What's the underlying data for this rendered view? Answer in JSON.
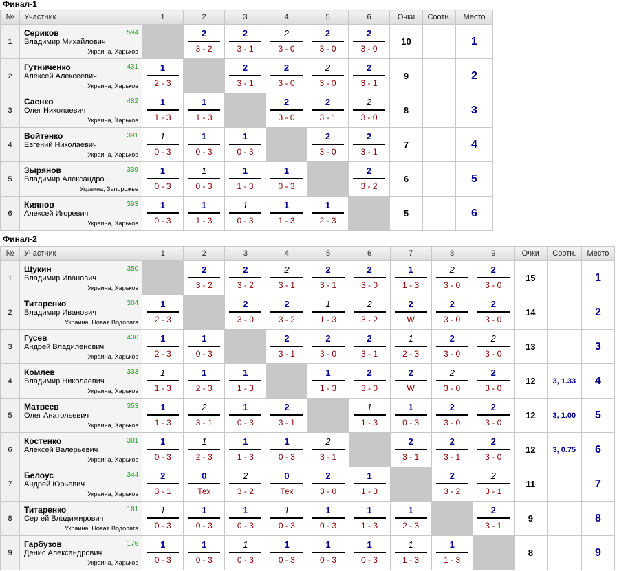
{
  "tables": [
    {
      "title": "Финал-1",
      "headers": {
        "num": "№",
        "participant": "Участник",
        "points": "Очки",
        "ratio": "Соотн.",
        "place": "Место"
      },
      "columns": [
        "1",
        "2",
        "3",
        "4",
        "5",
        "6"
      ],
      "players": [
        {
          "num": "1",
          "name": "Сериков",
          "first": "Владимир Михайлович",
          "rating": "594",
          "city": "Украина, Харьков",
          "points": "10",
          "ratio": "",
          "place": "1",
          "cells": [
            null,
            [
              "2",
              "3 - 2",
              0
            ],
            [
              "2",
              "3 - 1",
              0
            ],
            [
              "2",
              "3 - 0",
              1
            ],
            [
              "2",
              "3 - 0",
              0
            ],
            [
              "2",
              "3 - 0",
              0
            ]
          ]
        },
        {
          "num": "2",
          "name": "Гутниченко",
          "first": "Алексей Алексеевич",
          "rating": "431",
          "city": "Украина, Харьков",
          "points": "9",
          "ratio": "",
          "place": "2",
          "cells": [
            [
              "1",
              "2 - 3",
              0
            ],
            null,
            [
              "2",
              "3 - 1",
              0
            ],
            [
              "2",
              "3 - 0",
              0
            ],
            [
              "2",
              "3 - 0",
              1
            ],
            [
              "2",
              "3 - 1",
              0
            ]
          ]
        },
        {
          "num": "3",
          "name": "Саенко",
          "first": "Олег Николаевич",
          "rating": "482",
          "city": "Украина, Харьков",
          "points": "8",
          "ratio": "",
          "place": "3",
          "cells": [
            [
              "1",
              "1 - 3",
              0
            ],
            [
              "1",
              "1 - 3",
              0
            ],
            null,
            [
              "2",
              "3 - 0",
              0
            ],
            [
              "2",
              "3 - 1",
              0
            ],
            [
              "2",
              "3 - 0",
              1
            ]
          ]
        },
        {
          "num": "4",
          "name": "Войтенко",
          "first": "Евгений Николаевич",
          "rating": "391",
          "city": "Украина, Харьков",
          "points": "7",
          "ratio": "",
          "place": "4",
          "cells": [
            [
              "1",
              "0 - 3",
              1
            ],
            [
              "1",
              "0 - 3",
              0
            ],
            [
              "1",
              "0 - 3",
              0
            ],
            null,
            [
              "2",
              "3 - 0",
              0
            ],
            [
              "2",
              "3 - 1",
              0
            ]
          ]
        },
        {
          "num": "5",
          "name": "Зырянов",
          "first": "Владимир Александро...",
          "rating": "339",
          "city": "Украина, Запорожье",
          "points": "6",
          "ratio": "",
          "place": "5",
          "cells": [
            [
              "1",
              "0 - 3",
              0
            ],
            [
              "1",
              "0 - 3",
              1
            ],
            [
              "1",
              "1 - 3",
              0
            ],
            [
              "1",
              "0 - 3",
              0
            ],
            null,
            [
              "2",
              "3 - 2",
              0
            ]
          ]
        },
        {
          "num": "6",
          "name": "Киянов",
          "first": "Алексей Игоревич",
          "rating": "393",
          "city": "Украина, Харьков",
          "points": "5",
          "ratio": "",
          "place": "6",
          "cells": [
            [
              "1",
              "0 - 3",
              0
            ],
            [
              "1",
              "1 - 3",
              0
            ],
            [
              "1",
              "0 - 3",
              1
            ],
            [
              "1",
              "1 - 3",
              0
            ],
            [
              "1",
              "2 - 3",
              0
            ],
            null
          ]
        }
      ]
    },
    {
      "title": "Финал-2",
      "headers": {
        "num": "№",
        "participant": "Участник",
        "points": "Очки",
        "ratio": "Соотн.",
        "place": "Место"
      },
      "columns": [
        "1",
        "2",
        "3",
        "4",
        "5",
        "6",
        "7",
        "8",
        "9"
      ],
      "players": [
        {
          "num": "1",
          "name": "Щукин",
          "first": "Владимир Иванович",
          "rating": "350",
          "city": "Украина, Харьков",
          "points": "15",
          "ratio": "",
          "place": "1",
          "cells": [
            null,
            [
              "2",
              "3 - 2",
              0
            ],
            [
              "2",
              "3 - 2",
              0
            ],
            [
              "2",
              "3 - 1",
              1
            ],
            [
              "2",
              "3 - 1",
              0
            ],
            [
              "2",
              "3 - 0",
              0
            ],
            [
              "1",
              "1 - 3",
              0
            ],
            [
              "2",
              "3 - 0",
              1
            ],
            [
              "2",
              "3 - 0",
              0
            ]
          ]
        },
        {
          "num": "2",
          "name": "Титаренко",
          "first": "Владимир Иванович",
          "rating": "304",
          "city": "Украина, Новая Водолага",
          "points": "14",
          "ratio": "",
          "place": "2",
          "cells": [
            [
              "1",
              "2 - 3",
              0
            ],
            null,
            [
              "2",
              "3 - 0",
              0
            ],
            [
              "2",
              "3 - 2",
              0
            ],
            [
              "1",
              "1 - 3",
              1
            ],
            [
              "2",
              "3 - 2",
              1
            ],
            [
              "2",
              "W",
              0
            ],
            [
              "2",
              "3 - 0",
              0
            ],
            [
              "2",
              "3 - 0",
              0
            ]
          ]
        },
        {
          "num": "3",
          "name": "Гусев",
          "first": "Андрей Владиленович",
          "rating": "430",
          "city": "Украина, Харьков",
          "points": "13",
          "ratio": "",
          "place": "3",
          "cells": [
            [
              "1",
              "2 - 3",
              0
            ],
            [
              "1",
              "0 - 3",
              0
            ],
            null,
            [
              "2",
              "3 - 1",
              0
            ],
            [
              "2",
              "3 - 0",
              0
            ],
            [
              "2",
              "3 - 1",
              0
            ],
            [
              "1",
              "2 - 3",
              1
            ],
            [
              "2",
              "3 - 0",
              0
            ],
            [
              "2",
              "3 - 0",
              1
            ]
          ]
        },
        {
          "num": "4",
          "name": "Комлев",
          "first": "Владимир Николаевич",
          "rating": "333",
          "city": "Украина, Харьков",
          "points": "12",
          "ratio": "3, 1.33",
          "place": "4",
          "cells": [
            [
              "1",
              "1 - 3",
              1
            ],
            [
              "1",
              "2 - 3",
              0
            ],
            [
              "1",
              "1 - 3",
              0
            ],
            null,
            [
              "1",
              "1 - 3",
              0
            ],
            [
              "2",
              "3 - 0",
              0
            ],
            [
              "2",
              "W",
              0
            ],
            [
              "2",
              "3 - 0",
              1
            ],
            [
              "2",
              "3 - 0",
              0
            ]
          ]
        },
        {
          "num": "5",
          "name": "Матвеев",
          "first": "Олег Анатольевич",
          "rating": "353",
          "city": "Украина, Харьков",
          "points": "12",
          "ratio": "3, 1.00",
          "place": "5",
          "cells": [
            [
              "1",
              "1 - 3",
              0
            ],
            [
              "2",
              "3 - 1",
              1
            ],
            [
              "1",
              "0 - 3",
              0
            ],
            [
              "2",
              "3 - 1",
              0
            ],
            null,
            [
              "1",
              "1 - 3",
              1
            ],
            [
              "1",
              "0 - 3",
              0
            ],
            [
              "2",
              "3 - 0",
              0
            ],
            [
              "2",
              "3 - 0",
              0
            ]
          ]
        },
        {
          "num": "6",
          "name": "Костенко",
          "first": "Алексей Валерьевич",
          "rating": "301",
          "city": "Украина, Харьков",
          "points": "12",
          "ratio": "3, 0.75",
          "place": "6",
          "cells": [
            [
              "1",
              "0 - 3",
              0
            ],
            [
              "1",
              "2 - 3",
              1
            ],
            [
              "1",
              "1 - 3",
              0
            ],
            [
              "1",
              "0 - 3",
              0
            ],
            [
              "2",
              "3 - 1",
              1
            ],
            null,
            [
              "2",
              "3 - 1",
              0
            ],
            [
              "2",
              "3 - 1",
              0
            ],
            [
              "2",
              "3 - 0",
              0
            ]
          ]
        },
        {
          "num": "7",
          "name": "Белоус",
          "first": "Андрей Юрьевич",
          "rating": "344",
          "city": "Украина, Харьков",
          "points": "11",
          "ratio": "",
          "place": "7",
          "cells": [
            [
              "2",
              "3 - 1",
              0
            ],
            [
              "0",
              "Тех",
              0
            ],
            [
              "2",
              "3 - 2",
              1
            ],
            [
              "0",
              "Тех",
              0
            ],
            [
              "2",
              "3 - 0",
              0
            ],
            [
              "1",
              "1 - 3",
              0
            ],
            null,
            [
              "2",
              "3 - 2",
              0
            ],
            [
              "2",
              "3 - 1",
              1
            ]
          ]
        },
        {
          "num": "8",
          "name": "Титаренко",
          "first": "Сергей Владимирович",
          "rating": "181",
          "city": "Украина, Новая Водолага",
          "points": "9",
          "ratio": "",
          "place": "8",
          "cells": [
            [
              "1",
              "0 - 3",
              1
            ],
            [
              "1",
              "0 - 3",
              0
            ],
            [
              "1",
              "0 - 3",
              0
            ],
            [
              "1",
              "0 - 3",
              1
            ],
            [
              "1",
              "0 - 3",
              0
            ],
            [
              "1",
              "1 - 3",
              0
            ],
            [
              "1",
              "2 - 3",
              0
            ],
            null,
            [
              "2",
              "3 - 1",
              0
            ]
          ]
        },
        {
          "num": "9",
          "name": "Гарбузов",
          "first": "Денис Александрович",
          "rating": "176",
          "city": "Украина, Харьков",
          "points": "8",
          "ratio": "",
          "place": "9",
          "cells": [
            [
              "1",
              "0 - 3",
              0
            ],
            [
              "1",
              "0 - 3",
              0
            ],
            [
              "1",
              "0 - 3",
              1
            ],
            [
              "1",
              "0 - 3",
              0
            ],
            [
              "1",
              "0 - 3",
              0
            ],
            [
              "1",
              "0 - 3",
              0
            ],
            [
              "1",
              "1 - 3",
              1
            ],
            [
              "1",
              "1 - 3",
              0
            ],
            null
          ]
        }
      ]
    }
  ]
}
